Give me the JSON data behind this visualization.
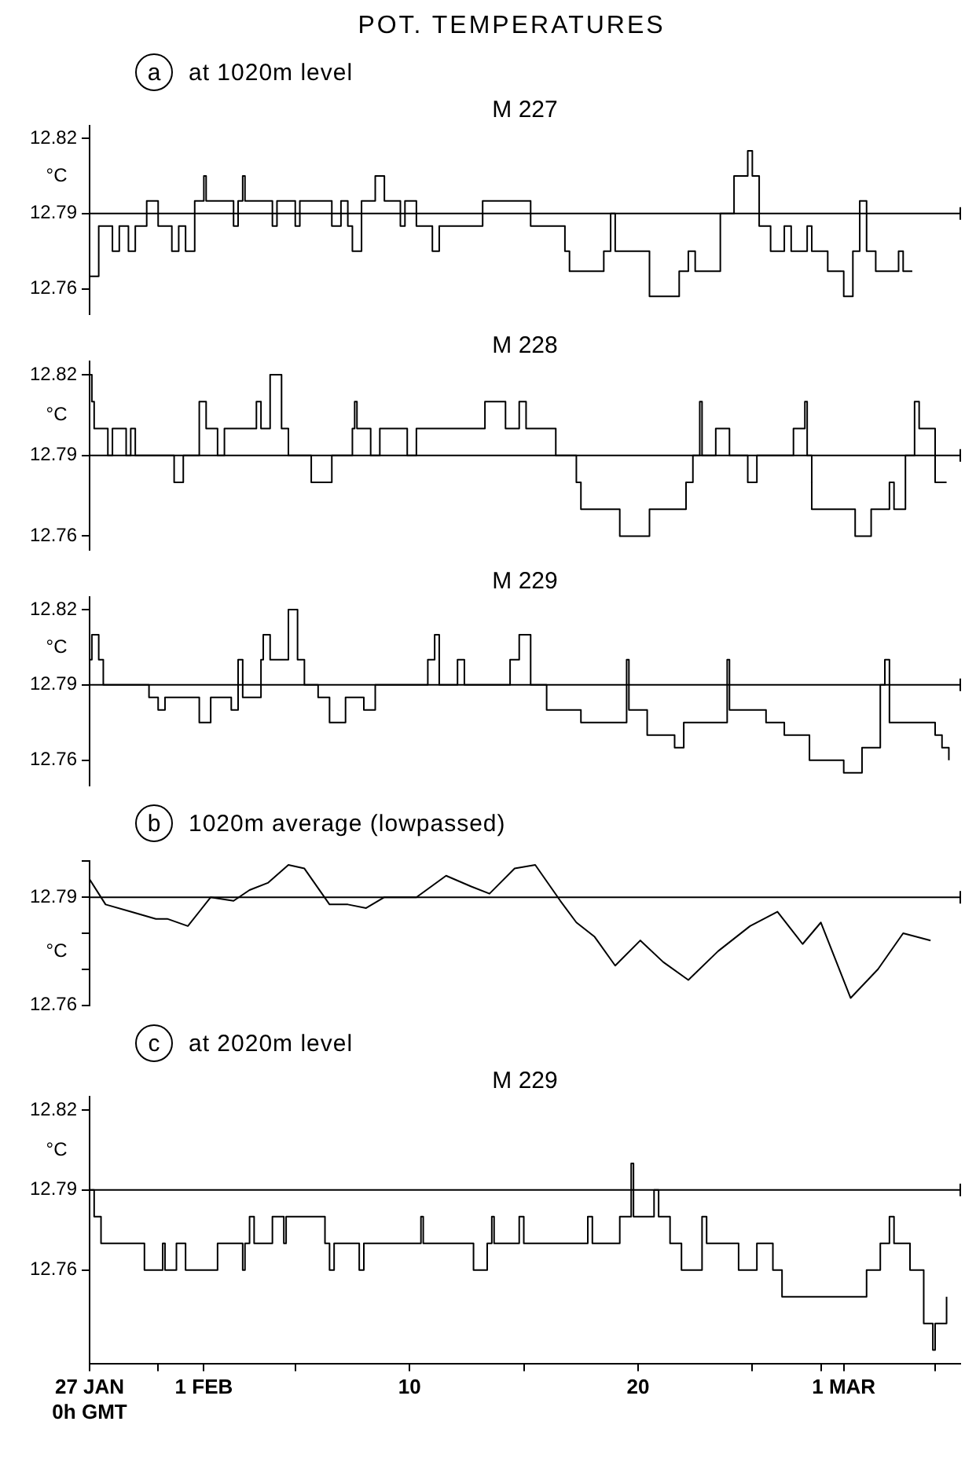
{
  "chart_data": [
    {
      "type": "step",
      "title": "POT. TEMPERATURES",
      "subtitle": "at 1020m level",
      "annotations": [
        "a"
      ],
      "ylabel": "°C",
      "tick_labels": "y",
      "grid": false,
      "xlim": [
        -4,
        34.1
      ],
      "ylim": [
        12.75,
        12.825
      ],
      "yticks": [
        12.76,
        12.79,
        12.82
      ],
      "ref_lines": [
        {
          "axis": "y",
          "value": 12.79,
          "color": "#000000"
        }
      ],
      "series": [
        {
          "name": "M 227",
          "color": "#000000",
          "x": [
            -4,
            -3.6,
            -3.0,
            -2.7,
            -2.3,
            -2.0,
            -1.5,
            -1.0,
            -0.4,
            -0.1,
            0.2,
            0.6,
            1.0,
            1.1,
            2.3,
            2.5,
            2.7,
            2.8,
            4.0,
            4.2,
            5.0,
            5.2,
            6.6,
            7.0,
            7.3,
            7.5,
            7.9,
            8.5,
            8.9,
            9.6,
            9.8,
            10.3,
            11.0,
            11.3,
            13.2,
            15.3,
            16.8,
            17.0,
            18.5,
            18.8,
            19.0,
            20.5,
            21.8,
            22.2,
            22.5,
            23.6,
            24.2,
            24.8,
            25.0,
            25.3,
            25.8,
            26.4,
            26.7,
            27.4,
            27.6,
            28.3,
            29.0,
            29.4,
            29.7,
            30.0,
            30.4,
            31.4,
            31.6,
            32.0
          ],
          "values": [
            12.765,
            12.785,
            12.775,
            12.785,
            12.775,
            12.785,
            12.795,
            12.785,
            12.775,
            12.785,
            12.775,
            12.795,
            12.805,
            12.795,
            12.785,
            12.795,
            12.805,
            12.795,
            12.785,
            12.795,
            12.785,
            12.795,
            12.785,
            12.795,
            12.785,
            12.775,
            12.795,
            12.805,
            12.795,
            12.785,
            12.795,
            12.785,
            12.775,
            12.785,
            12.795,
            12.785,
            12.775,
            12.767,
            12.775,
            12.79,
            12.775,
            12.757,
            12.767,
            12.775,
            12.767,
            12.79,
            12.805,
            12.815,
            12.805,
            12.785,
            12.775,
            12.785,
            12.775,
            12.785,
            12.775,
            12.767,
            12.757,
            12.775,
            12.795,
            12.775,
            12.767,
            12.775,
            12.767,
            12.767
          ]
        }
      ]
    },
    {
      "type": "step",
      "ylabel": "°C",
      "tick_labels": "y",
      "grid": false,
      "xlim": [
        -4,
        34.1
      ],
      "ylim": [
        12.755,
        12.825
      ],
      "yticks": [
        12.76,
        12.79,
        12.82
      ],
      "ref_lines": [
        {
          "axis": "y",
          "value": 12.79,
          "color": "#000000"
        }
      ],
      "series": [
        {
          "name": "M 228",
          "color": "#000000",
          "x": [
            -4,
            -3.9,
            -3.8,
            -3.2,
            -3.0,
            -2.4,
            -2.2,
            -2.0,
            -0.3,
            0.1,
            0.8,
            1.1,
            1.6,
            1.9,
            3.3,
            3.5,
            3.9,
            4.4,
            4.7,
            5.7,
            6.6,
            7.5,
            7.6,
            7.7,
            8.3,
            8.7,
            9.9,
            10.3,
            13.3,
            14.2,
            14.8,
            15.1,
            16.4,
            17.3,
            17.5,
            19.2,
            20.5,
            22.1,
            22.4,
            22.7,
            22.8,
            23.4,
            24.0,
            24.8,
            25.2,
            26.8,
            27.3,
            27.4,
            27.6,
            29.5,
            30.2,
            31.0,
            31.2,
            31.7,
            32.1,
            32.3,
            33.0,
            33.5
          ],
          "values": [
            12.82,
            12.81,
            12.8,
            12.79,
            12.8,
            12.79,
            12.8,
            12.79,
            12.78,
            12.79,
            12.81,
            12.8,
            12.79,
            12.8,
            12.81,
            12.8,
            12.82,
            12.8,
            12.79,
            12.78,
            12.79,
            12.8,
            12.81,
            12.8,
            12.79,
            12.8,
            12.79,
            12.8,
            12.81,
            12.8,
            12.81,
            12.8,
            12.79,
            12.78,
            12.77,
            12.76,
            12.77,
            12.78,
            12.79,
            12.81,
            12.79,
            12.8,
            12.79,
            12.78,
            12.79,
            12.8,
            12.81,
            12.79,
            12.77,
            12.76,
            12.77,
            12.78,
            12.77,
            12.79,
            12.81,
            12.8,
            12.78,
            12.78
          ]
        }
      ]
    },
    {
      "type": "step",
      "ylabel": "°C",
      "tick_labels": "y",
      "grid": false,
      "xlim": [
        -4,
        34.1
      ],
      "ylim": [
        12.75,
        12.825
      ],
      "yticks": [
        12.76,
        12.79,
        12.82
      ],
      "ref_lines": [
        {
          "axis": "y",
          "value": 12.79,
          "color": "#000000"
        }
      ],
      "series": [
        {
          "name": "M 229",
          "color": "#000000",
          "x": [
            -4,
            -3.9,
            -3.6,
            -3.4,
            -1.4,
            -1.0,
            -0.7,
            0.8,
            1.3,
            2.2,
            2.5,
            2.7,
            3.5,
            3.6,
            3.9,
            4.7,
            5.1,
            5.4,
            6.0,
            6.5,
            7.2,
            8.0,
            8.5,
            10.8,
            11.1,
            11.3,
            12.1,
            12.4,
            14.4,
            14.8,
            15.3,
            16.0,
            17.5,
            19.5,
            19.6,
            20.4,
            21.6,
            22.0,
            23.9,
            24.0,
            25.6,
            26.4,
            27.5,
            29.0,
            29.8,
            30.6,
            30.8,
            31.0,
            33.0,
            33.3,
            33.6
          ],
          "values": [
            12.8,
            12.81,
            12.8,
            12.79,
            12.785,
            12.78,
            12.785,
            12.775,
            12.785,
            12.78,
            12.8,
            12.785,
            12.8,
            12.81,
            12.8,
            12.82,
            12.8,
            12.79,
            12.785,
            12.775,
            12.785,
            12.78,
            12.79,
            12.8,
            12.81,
            12.79,
            12.8,
            12.79,
            12.8,
            12.81,
            12.79,
            12.78,
            12.775,
            12.8,
            12.78,
            12.77,
            12.765,
            12.775,
            12.8,
            12.78,
            12.775,
            12.77,
            12.76,
            12.755,
            12.765,
            12.79,
            12.8,
            12.775,
            12.77,
            12.765,
            12.76
          ]
        }
      ]
    },
    {
      "type": "line",
      "subtitle": "1020m average (lowpassed)",
      "annotations": [
        "b"
      ],
      "ylabel": "°C",
      "tick_labels": "y",
      "grid": false,
      "xlim": [
        -4,
        34.1
      ],
      "ylim": [
        12.76,
        12.8
      ],
      "yticks": [
        {
          "value": 12.8,
          "label": null
        },
        12.79,
        {
          "value": 12.78,
          "label": null
        },
        {
          "value": 12.77,
          "label": null
        },
        12.76
      ],
      "ref_lines": [
        {
          "axis": "y",
          "value": 12.79,
          "color": "#000000"
        }
      ],
      "series": [
        {
          "color": "#000000",
          "x": [
            -4,
            -3.3,
            -2.2,
            -1.1,
            -0.6,
            0.3,
            1.3,
            2.3,
            3.0,
            3.8,
            4.7,
            5.4,
            6.5,
            7.3,
            8.1,
            8.9,
            10.3,
            11.6,
            12.7,
            13.5,
            14.6,
            15.5,
            16.6,
            17.3,
            18.1,
            19.0,
            20.1,
            21.1,
            22.2,
            23.5,
            24.9,
            26.1,
            27.2,
            28.0,
            29.3,
            30.5,
            31.6,
            32.8
          ],
          "values": [
            12.795,
            12.788,
            12.786,
            12.784,
            12.784,
            12.782,
            12.79,
            12.789,
            12.792,
            12.794,
            12.799,
            12.798,
            12.788,
            12.788,
            12.787,
            12.79,
            12.79,
            12.796,
            12.793,
            12.791,
            12.798,
            12.799,
            12.789,
            12.783,
            12.779,
            12.771,
            12.778,
            12.772,
            12.767,
            12.775,
            12.782,
            12.786,
            12.777,
            12.783,
            12.762,
            12.77,
            12.78,
            12.778
          ]
        }
      ]
    },
    {
      "type": "step",
      "subtitle": "at 2020m level",
      "annotations": [
        "c"
      ],
      "ylabel": "°C",
      "grid": false,
      "xlim": [
        -4,
        34.1
      ],
      "xticks": [
        {
          "value": -4,
          "label": "27 JAN\n0h GMT"
        },
        {
          "value": -1,
          "label": null
        },
        {
          "value": 1,
          "label": "1 FEB"
        },
        {
          "value": 5,
          "label": null
        },
        10,
        {
          "value": 15,
          "label": null
        },
        20,
        {
          "value": 25,
          "label": null
        },
        {
          "value": 28,
          "label": null
        },
        {
          "value": 29,
          "label": "1 MAR"
        },
        {
          "value": 33,
          "label": null
        }
      ],
      "ylim": [
        12.725,
        12.825
      ],
      "yticks": [
        12.76,
        12.79,
        12.82
      ],
      "ref_lines": [
        {
          "axis": "y",
          "value": 12.79,
          "color": "#000000"
        }
      ],
      "series": [
        {
          "name": "M 229",
          "color": "#000000",
          "x": [
            -4,
            -3.8,
            -3.5,
            -1.6,
            -0.8,
            -0.7,
            -0.2,
            0.2,
            1.6,
            2.7,
            2.8,
            3.0,
            3.2,
            4.0,
            4.5,
            4.6,
            6.3,
            6.5,
            6.7,
            7.8,
            8.0,
            10.5,
            10.6,
            12.8,
            13.4,
            13.6,
            13.7,
            14.8,
            15.0,
            17.8,
            18.0,
            19.2,
            19.7,
            19.8,
            20.7,
            20.9,
            21.4,
            21.9,
            22.8,
            23.0,
            24.4,
            25.2,
            25.9,
            26.3,
            30.0,
            30.6,
            31.0,
            31.2,
            31.9,
            32.5,
            32.9,
            33.0,
            33.5
          ],
          "values": [
            12.79,
            12.78,
            12.77,
            12.76,
            12.77,
            12.76,
            12.77,
            12.76,
            12.77,
            12.76,
            12.77,
            12.78,
            12.77,
            12.78,
            12.77,
            12.78,
            12.77,
            12.76,
            12.77,
            12.76,
            12.77,
            12.78,
            12.77,
            12.76,
            12.77,
            12.78,
            12.77,
            12.78,
            12.77,
            12.78,
            12.77,
            12.78,
            12.8,
            12.78,
            12.79,
            12.78,
            12.77,
            12.76,
            12.78,
            12.77,
            12.76,
            12.77,
            12.76,
            12.75,
            12.76,
            12.77,
            12.78,
            12.77,
            12.76,
            12.74,
            12.73,
            12.74,
            12.75
          ]
        }
      ]
    }
  ]
}
